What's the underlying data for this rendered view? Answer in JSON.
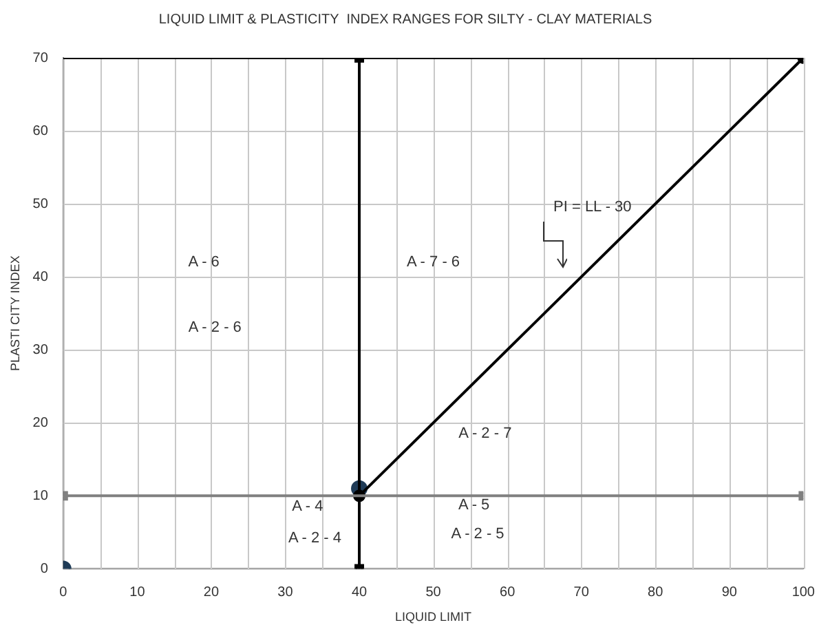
{
  "chart_data": {
    "type": "line",
    "title": "LIQUID LIMIT & PLASTICITY  INDEX RANGES FOR SILTY - CLAY MATERIALS",
    "xlabel": "LIQUID LIMIT",
    "ylabel": "PLASTI CITY INDEX",
    "xlim": [
      0,
      100
    ],
    "ylim": [
      0,
      70
    ],
    "xticks": [
      0,
      {
        "value": 5,
        "label": null
      },
      10,
      {
        "value": 15,
        "label": null
      },
      20,
      {
        "value": 25,
        "label": null
      },
      30,
      {
        "value": 35,
        "label": null
      },
      40,
      {
        "value": 45,
        "label": null
      },
      50,
      {
        "value": 55,
        "label": null
      },
      60,
      {
        "value": 65,
        "label": null
      },
      70,
      {
        "value": 75,
        "label": null
      },
      80,
      {
        "value": 85,
        "label": null
      },
      90,
      {
        "value": 95,
        "label": null
      },
      100
    ],
    "yticks": [
      0,
      10,
      20,
      30,
      40,
      50,
      60,
      70
    ],
    "grid": true,
    "series": [
      {
        "color": "#000000",
        "x": [
          0,
          100
        ],
        "values": [
          70,
          70
        ]
      },
      {
        "color": "#808080",
        "marker": "square",
        "x": [
          0,
          100
        ],
        "values": [
          10,
          10
        ]
      },
      {
        "color": "#000000",
        "marker": "square",
        "x": [
          40,
          40
        ],
        "values": [
          0,
          70
        ]
      },
      {
        "color": "#000000",
        "marker": "circle",
        "x": [
          40,
          100
        ],
        "values": [
          10,
          70
        ]
      },
      {
        "type": "scatter",
        "color": "#1f3b57",
        "marker": "circle",
        "x": [
          0,
          40
        ],
        "values": [
          0,
          11
        ]
      }
    ],
    "annotations": [
      "A - 6",
      "A - 2 - 6",
      "A - 7 - 6",
      "A - 2 - 7",
      "A - 4",
      "A - 2 - 4",
      "A - 5",
      "A - 2 - 5",
      "PI = LL - 30"
    ]
  }
}
